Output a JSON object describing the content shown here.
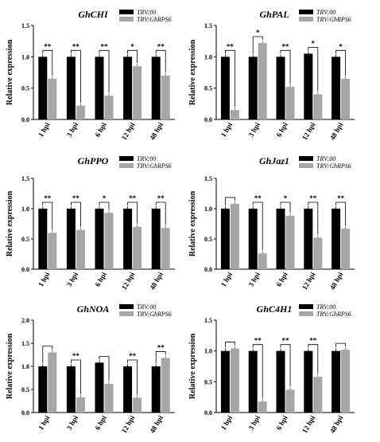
{
  "legend_labels": [
    "TRV:00",
    "TRV:GhRPS6"
  ],
  "colors": {
    "TRV:00": "#000000",
    "TRV:GhRPS6": "#a6a6a6"
  },
  "chart_data": [
    {
      "type": "bar",
      "title": "GhCHI",
      "ylabel": "Relative expression",
      "xlabel": "",
      "categories": [
        "1 hpi",
        "3 hpi",
        "6 hpi",
        "12 hpi",
        "48 hpi"
      ],
      "ylim": [
        0,
        1.5
      ],
      "yticks": [
        "0.0",
        "0.5",
        "1.0",
        "1.5"
      ],
      "series": [
        {
          "name": "TRV:00",
          "values": [
            1.0,
            1.0,
            1.0,
            1.0,
            1.0
          ]
        },
        {
          "name": "TRV:GhRPS6",
          "values": [
            0.65,
            0.22,
            0.38,
            0.85,
            0.7
          ]
        }
      ],
      "significance": [
        "**",
        "**",
        "**",
        "*",
        "**"
      ],
      "legend": "top-right",
      "grid": false
    },
    {
      "type": "bar",
      "title": "GhPAL",
      "ylabel": "Relative expression",
      "xlabel": "",
      "categories": [
        "1 hpi",
        "3 hpi",
        "6 hpi",
        "12 hpi",
        "48 hpi"
      ],
      "ylim": [
        0,
        1.5
      ],
      "yticks": [
        "0.0",
        "0.5",
        "1.0",
        "1.5"
      ],
      "series": [
        {
          "name": "TRV:00",
          "values": [
            1.0,
            1.0,
            1.0,
            1.05,
            1.0
          ]
        },
        {
          "name": "TRV:GhRPS6",
          "values": [
            0.15,
            1.22,
            0.52,
            0.4,
            0.65
          ]
        }
      ],
      "significance": [
        "**",
        "*",
        "**",
        "*",
        "*"
      ],
      "legend": "top-right",
      "grid": false
    },
    {
      "type": "bar",
      "title": "GhPPO",
      "ylabel": "Relative expression",
      "xlabel": "",
      "categories": [
        "1 hpi",
        "3 hpi",
        "6 hpi",
        "12 hpi",
        "48 hpi"
      ],
      "ylim": [
        0,
        1.5
      ],
      "yticks": [
        "0.0",
        "0.5",
        "1.0",
        "1.5"
      ],
      "series": [
        {
          "name": "TRV:00",
          "values": [
            1.0,
            1.0,
            1.0,
            1.0,
            1.0
          ]
        },
        {
          "name": "TRV:GhRPS6",
          "values": [
            0.6,
            0.65,
            0.93,
            0.7,
            0.68
          ]
        }
      ],
      "significance": [
        "**",
        "**",
        "*",
        "**",
        "**"
      ],
      "legend": "top-right",
      "grid": false
    },
    {
      "type": "bar",
      "title": "GhJaz1",
      "ylabel": "Relative expression",
      "xlabel": "",
      "categories": [
        "1 hpi",
        "3 hpi",
        "6 hpi",
        "12 hpi",
        "48 hpi"
      ],
      "ylim": [
        0,
        1.5
      ],
      "yticks": [
        "0.0",
        "0.5",
        "1.0",
        "1.5"
      ],
      "series": [
        {
          "name": "TRV:00",
          "values": [
            1.0,
            1.0,
            1.0,
            1.0,
            1.0
          ]
        },
        {
          "name": "TRV:GhRPS6",
          "values": [
            1.08,
            0.26,
            0.88,
            0.52,
            0.67
          ]
        }
      ],
      "significance": [
        "",
        "**",
        "*",
        "**",
        "**"
      ],
      "legend": "top-right",
      "grid": false
    },
    {
      "type": "bar",
      "title": "GhNOA",
      "ylabel": "Relative expression",
      "xlabel": "",
      "categories": [
        "1 hpi",
        "3 hpi",
        "6 hpi",
        "12 hpi",
        "48 hpi"
      ],
      "ylim": [
        0,
        2.0
      ],
      "yticks": [
        "0.0",
        "0.5",
        "1.0",
        "1.5",
        "2.0"
      ],
      "series": [
        {
          "name": "TRV:00",
          "values": [
            1.0,
            1.0,
            1.08,
            1.0,
            1.0
          ]
        },
        {
          "name": "TRV:GhRPS6",
          "values": [
            1.3,
            0.33,
            0.62,
            0.32,
            1.18
          ]
        }
      ],
      "significance": [
        "",
        "**",
        "",
        "**",
        "**"
      ],
      "legend": "top-right",
      "grid": false
    },
    {
      "type": "bar",
      "title": "GhC4H1",
      "ylabel": "Relative expression",
      "xlabel": "",
      "categories": [
        "1 hpi",
        "3 hpi",
        "6 hpi",
        "12 hpi",
        "48 hpi"
      ],
      "ylim": [
        0,
        1.5
      ],
      "yticks": [
        "0.0",
        "0.5",
        "1.0",
        "1.5"
      ],
      "series": [
        {
          "name": "TRV:00",
          "values": [
            1.0,
            1.0,
            1.0,
            1.0,
            1.0
          ]
        },
        {
          "name": "TRV:GhRPS6",
          "values": [
            1.04,
            0.18,
            0.37,
            0.58,
            1.02
          ]
        }
      ],
      "significance": [
        "",
        "**",
        "**",
        "**",
        ""
      ],
      "legend": "top-right",
      "grid": false
    }
  ]
}
